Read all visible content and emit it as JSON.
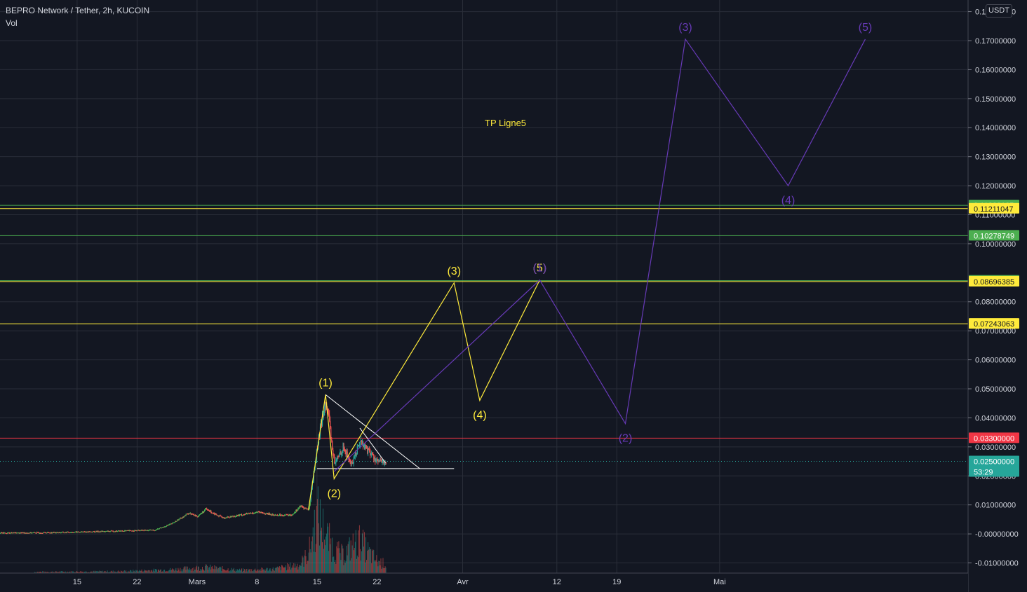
{
  "header": {
    "symbol": "BEPRO Network / Tether, 2h, KUCOIN",
    "indicator": "Vol"
  },
  "currency_button": "USDT",
  "chart_data": {
    "type": "candlestick",
    "title": "BEPRO Network / Tether, 2h, KUCOIN",
    "y_axis": {
      "ticks": [
        0.18,
        0.17,
        0.16,
        0.15,
        0.14,
        0.13,
        0.12,
        0.11,
        0.1,
        0.08,
        0.07,
        0.06,
        0.05,
        0.04,
        0.03,
        0.02,
        0.01,
        -0.0,
        -0.01
      ],
      "tick_labels": [
        "0.18000000",
        "0.17000000",
        "0.16000000",
        "0.15000000",
        "0.14000000",
        "0.13000000",
        "0.12000000",
        "0.11000000",
        "0.10000000",
        "0.08000000",
        "0.07000000",
        "0.06000000",
        "0.05000000",
        "0.04000000",
        "0.03000000",
        "0.02000000",
        "0.01000000",
        "-0.00000000",
        "-0.01000000"
      ],
      "ylim": [
        -0.0135,
        0.184
      ]
    },
    "x_axis": {
      "labels": [
        "15",
        "22",
        "Mars",
        "8",
        "15",
        "22",
        "Avr",
        "12",
        "19",
        "Mai"
      ],
      "range": [
        "2021-02-06",
        "2021-05-30"
      ]
    },
    "grid": true,
    "price_lines": [
      {
        "value": 0.11323125,
        "label": "0.11323125",
        "color": "#4caf50"
      },
      {
        "value": 0.11211047,
        "label": "0.11211047",
        "color": "#ffeb3b"
      },
      {
        "value": 0.10278749,
        "label": "0.10278749",
        "color": "#4caf50"
      },
      {
        "value": 0.08726236,
        "label": "0.08726236",
        "color": "#4caf50"
      },
      {
        "value": 0.08696385,
        "label": "0.08696385",
        "color": "#ffeb3b"
      },
      {
        "value": 0.07243063,
        "label": "0.07243063",
        "color": "#ffeb3b"
      },
      {
        "value": 0.033,
        "label": "0.03300000",
        "color": "#f23645"
      },
      {
        "value": 0.025,
        "label": "0.02500000",
        "color": "#26a69a",
        "countdown": "53:29"
      }
    ],
    "annotations": [
      {
        "text": "TP Ligne5",
        "color": "#ffeb3b",
        "date": "2021-04-06",
        "price": 0.1405
      }
    ],
    "waves": [
      {
        "name": "",
        "color": "#ffeb3b",
        "points": [
          {
            "date": "2021-03-14",
            "price": 0.0083,
            "label": ""
          },
          {
            "date": "2021-03-16",
            "price": 0.048,
            "label": "(1)"
          },
          {
            "date": "2021-03-17",
            "price": 0.019,
            "label": "(2)"
          },
          {
            "date": "2021-03-31",
            "price": 0.0865,
            "label": "(3)"
          },
          {
            "date": "2021-04-03",
            "price": 0.046,
            "label": "(4)"
          },
          {
            "date": "2021-04-10",
            "price": 0.0875,
            "label": "(5)"
          }
        ]
      },
      {
        "name": "",
        "color": "#673ab7",
        "points": [
          {
            "date": "2021-03-17",
            "price": 0.0215,
            "label": ""
          },
          {
            "date": "2021-04-10",
            "price": 0.0875,
            "label": "(1)"
          },
          {
            "date": "2021-04-20",
            "price": 0.038,
            "label": "(2)"
          },
          {
            "date": "2021-04-27",
            "price": 0.1705,
            "label": "(3)"
          },
          {
            "date": "2021-05-09",
            "price": 0.12,
            "label": "(4)"
          },
          {
            "date": "2021-05-18",
            "price": 0.1705,
            "label": "(5)"
          }
        ]
      }
    ],
    "trendlines": [
      {
        "color": "#ffffff",
        "points": [
          {
            "date": "2021-03-16",
            "price": 0.048
          },
          {
            "date": "2021-03-27",
            "price": 0.0225
          }
        ]
      },
      {
        "color": "#ffffff",
        "points": [
          {
            "date": "2021-03-15",
            "price": 0.0225
          },
          {
            "date": "2021-03-31",
            "price": 0.0225
          }
        ]
      },
      {
        "color": "#ffffff",
        "points": [
          {
            "date": "2021-03-20",
            "price": 0.0365
          },
          {
            "date": "2021-03-23",
            "price": 0.0245
          }
        ]
      }
    ],
    "price_series": {
      "name": "",
      "colors": {
        "up": "#26a69a",
        "down": "#ef5350",
        "up_bright": "#4caf50"
      },
      "points": [
        {
          "date": "2021-02-06",
          "price": 0.0003
        },
        {
          "date": "2021-02-13",
          "price": 0.0005
        },
        {
          "date": "2021-02-20",
          "price": 0.001
        },
        {
          "date": "2021-02-24",
          "price": 0.0013
        },
        {
          "date": "2021-02-26",
          "price": 0.0035
        },
        {
          "date": "2021-02-28",
          "price": 0.0072
        },
        {
          "date": "2021-03-01",
          "price": 0.006
        },
        {
          "date": "2021-03-02",
          "price": 0.0085
        },
        {
          "date": "2021-03-04",
          "price": 0.0055
        },
        {
          "date": "2021-03-06",
          "price": 0.0065
        },
        {
          "date": "2021-03-08",
          "price": 0.0075
        },
        {
          "date": "2021-03-10",
          "price": 0.0065
        },
        {
          "date": "2021-03-12",
          "price": 0.0065
        },
        {
          "date": "2021-03-13",
          "price": 0.0095
        },
        {
          "date": "2021-03-14",
          "price": 0.0083
        },
        {
          "date": "2021-03-15",
          "price": 0.03
        },
        {
          "date": "2021-03-16",
          "price": 0.047
        },
        {
          "date": "2021-03-17",
          "price": 0.024
        },
        {
          "date": "2021-03-18",
          "price": 0.03
        },
        {
          "date": "2021-03-19",
          "price": 0.024
        },
        {
          "date": "2021-03-20",
          "price": 0.032
        },
        {
          "date": "2021-03-21",
          "price": 0.0285
        },
        {
          "date": "2021-03-22",
          "price": 0.025
        },
        {
          "date": "2021-03-23",
          "price": 0.0245
        }
      ]
    },
    "volume_series": {
      "name": "Vol",
      "points": [
        {
          "date": "2021-02-10",
          "value": 0.02
        },
        {
          "date": "2021-02-20",
          "value": 0.03
        },
        {
          "date": "2021-02-26",
          "value": 0.06
        },
        {
          "date": "2021-03-02",
          "value": 0.1
        },
        {
          "date": "2021-03-06",
          "value": 0.05
        },
        {
          "date": "2021-03-10",
          "value": 0.07
        },
        {
          "date": "2021-03-13",
          "value": 0.15
        },
        {
          "date": "2021-03-14",
          "value": 0.35
        },
        {
          "date": "2021-03-15",
          "value": 1.0
        },
        {
          "date": "2021-03-16",
          "value": 0.65
        },
        {
          "date": "2021-03-17",
          "value": 0.4
        },
        {
          "date": "2021-03-18",
          "value": 0.3
        },
        {
          "date": "2021-03-19",
          "value": 0.45
        },
        {
          "date": "2021-03-20",
          "value": 0.55
        },
        {
          "date": "2021-03-21",
          "value": 0.35
        },
        {
          "date": "2021-03-22",
          "value": 0.2
        },
        {
          "date": "2021-03-23",
          "value": 0.15
        }
      ]
    }
  }
}
